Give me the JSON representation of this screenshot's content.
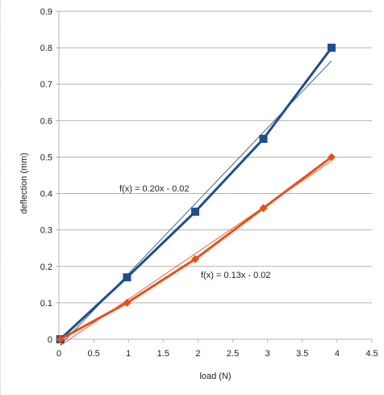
{
  "chart_data": {
    "type": "line",
    "xlabel": "load (N)",
    "ylabel": "deflection (mm)",
    "xlim": [
      0,
      4.5
    ],
    "ylim": [
      0,
      0.9
    ],
    "x_ticks": [
      "0",
      "0.5",
      "1",
      "1.5",
      "2",
      "2.5",
      "3",
      "3.5",
      "4",
      "4.5"
    ],
    "y_ticks": [
      "0",
      "0.1",
      "0.2",
      "0.3",
      "0.4",
      "0.5",
      "0.6",
      "0.7",
      "0.8",
      "0.9"
    ],
    "grid": "horizontal",
    "series": [
      {
        "color": "#1f4e8c",
        "marker": "square",
        "x": [
          0.02,
          0.98,
          1.96,
          2.94,
          3.92
        ],
        "y": [
          0,
          0.17,
          0.35,
          0.55,
          0.8
        ],
        "trendline": {
          "slope": 0.2,
          "intercept": -0.02,
          "label": "f(x) = 0.20x - 0.02"
        }
      },
      {
        "color": "#e8501a",
        "marker": "diamond",
        "x": [
          0.02,
          0.98,
          1.96,
          2.94,
          3.92
        ],
        "y": [
          0,
          0.1,
          0.22,
          0.36,
          0.5
        ],
        "trendline": {
          "slope": 0.13,
          "intercept": -0.02,
          "label": "f(x) = 0.13x - 0.02"
        }
      }
    ]
  }
}
